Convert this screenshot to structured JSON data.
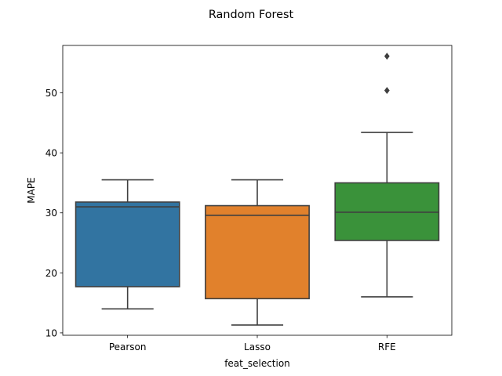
{
  "chart_data": {
    "type": "box",
    "title": "Random Forest",
    "xlabel": "feat_selection",
    "ylabel": "MAPE",
    "ylim": [
      9.6,
      57.9
    ],
    "yticks": [
      10,
      20,
      30,
      40,
      50
    ],
    "grid": false,
    "categories": [
      "Pearson",
      "Lasso",
      "RFE"
    ],
    "boxes": [
      {
        "category": "Pearson",
        "color": "#3274a1",
        "whisker_low": 14.0,
        "q1": 17.7,
        "median": 31.0,
        "q3": 31.8,
        "whisker_high": 35.5,
        "outliers": []
      },
      {
        "category": "Lasso",
        "color": "#e1812c",
        "whisker_low": 11.3,
        "q1": 15.7,
        "median": 29.6,
        "q3": 31.2,
        "whisker_high": 35.5,
        "outliers": []
      },
      {
        "category": "RFE",
        "color": "#3a923a",
        "whisker_low": 16.0,
        "q1": 25.4,
        "median": 30.1,
        "q3": 35.0,
        "whisker_high": 43.4,
        "outliers": [
          50.4,
          56.1
        ]
      }
    ]
  }
}
